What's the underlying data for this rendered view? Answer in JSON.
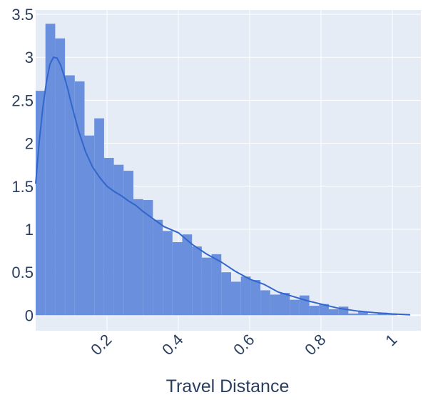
{
  "chart_data": {
    "type": "bar",
    "subtype": "histogram-with-density-curve",
    "title": "",
    "xlabel": "Travel Distance",
    "ylabel": "",
    "xlim": [
      0,
      1.08
    ],
    "ylim": [
      -0.18,
      3.55
    ],
    "x_ticks": [
      {
        "value": 0.2,
        "label": "0.2"
      },
      {
        "value": 0.4,
        "label": "0.4"
      },
      {
        "value": 0.6,
        "label": "0.6"
      },
      {
        "value": 0.8,
        "label": "0.8"
      },
      {
        "value": 1.0,
        "label": "1"
      }
    ],
    "y_ticks": [
      {
        "value": 0,
        "label": "0"
      },
      {
        "value": 0.5,
        "label": "0.5"
      },
      {
        "value": 1,
        "label": "1"
      },
      {
        "value": 1.5,
        "label": "1.5"
      },
      {
        "value": 2,
        "label": "2"
      },
      {
        "value": 2.5,
        "label": "2.5"
      },
      {
        "value": 3,
        "label": "3"
      },
      {
        "value": 3.5,
        "label": "3.5"
      }
    ],
    "grid": true,
    "colors": {
      "bar": "#6a8fdc",
      "curve": "#3366cc",
      "plot_bg": "#e5ecf6",
      "grid": "#ffffff",
      "text": "#2a3f5f"
    },
    "bin_width": 0.0274,
    "bin_start": 0.0,
    "histogram_values": [
      2.61,
      3.39,
      3.22,
      2.79,
      2.72,
      2.09,
      2.29,
      1.83,
      1.75,
      1.68,
      1.35,
      1.34,
      1.11,
      0.98,
      0.85,
      0.94,
      0.8,
      0.67,
      0.71,
      0.5,
      0.39,
      0.45,
      0.41,
      0.29,
      0.24,
      0.26,
      0.18,
      0.23,
      0.11,
      0.13,
      0.07,
      0.1,
      0.02,
      0.04,
      0.01,
      0.03,
      0.01
    ],
    "density_curve": {
      "x": [
        0.0,
        0.01,
        0.02,
        0.03,
        0.04,
        0.05,
        0.06,
        0.07,
        0.08,
        0.09,
        0.1,
        0.12,
        0.14,
        0.16,
        0.18,
        0.2,
        0.22,
        0.24,
        0.26,
        0.28,
        0.3,
        0.33,
        0.36,
        0.4,
        0.44,
        0.48,
        0.52,
        0.56,
        0.6,
        0.64,
        0.68,
        0.72,
        0.76,
        0.8,
        0.85,
        0.9,
        0.95,
        1.0,
        1.05
      ],
      "y": [
        1.53,
        2.02,
        2.41,
        2.71,
        2.92,
        3.0,
        2.99,
        2.91,
        2.78,
        2.63,
        2.46,
        2.15,
        1.9,
        1.72,
        1.6,
        1.5,
        1.44,
        1.39,
        1.33,
        1.28,
        1.21,
        1.12,
        1.03,
        0.96,
        0.82,
        0.71,
        0.62,
        0.51,
        0.42,
        0.36,
        0.27,
        0.22,
        0.17,
        0.13,
        0.08,
        0.05,
        0.03,
        0.015,
        0.005
      ]
    }
  }
}
